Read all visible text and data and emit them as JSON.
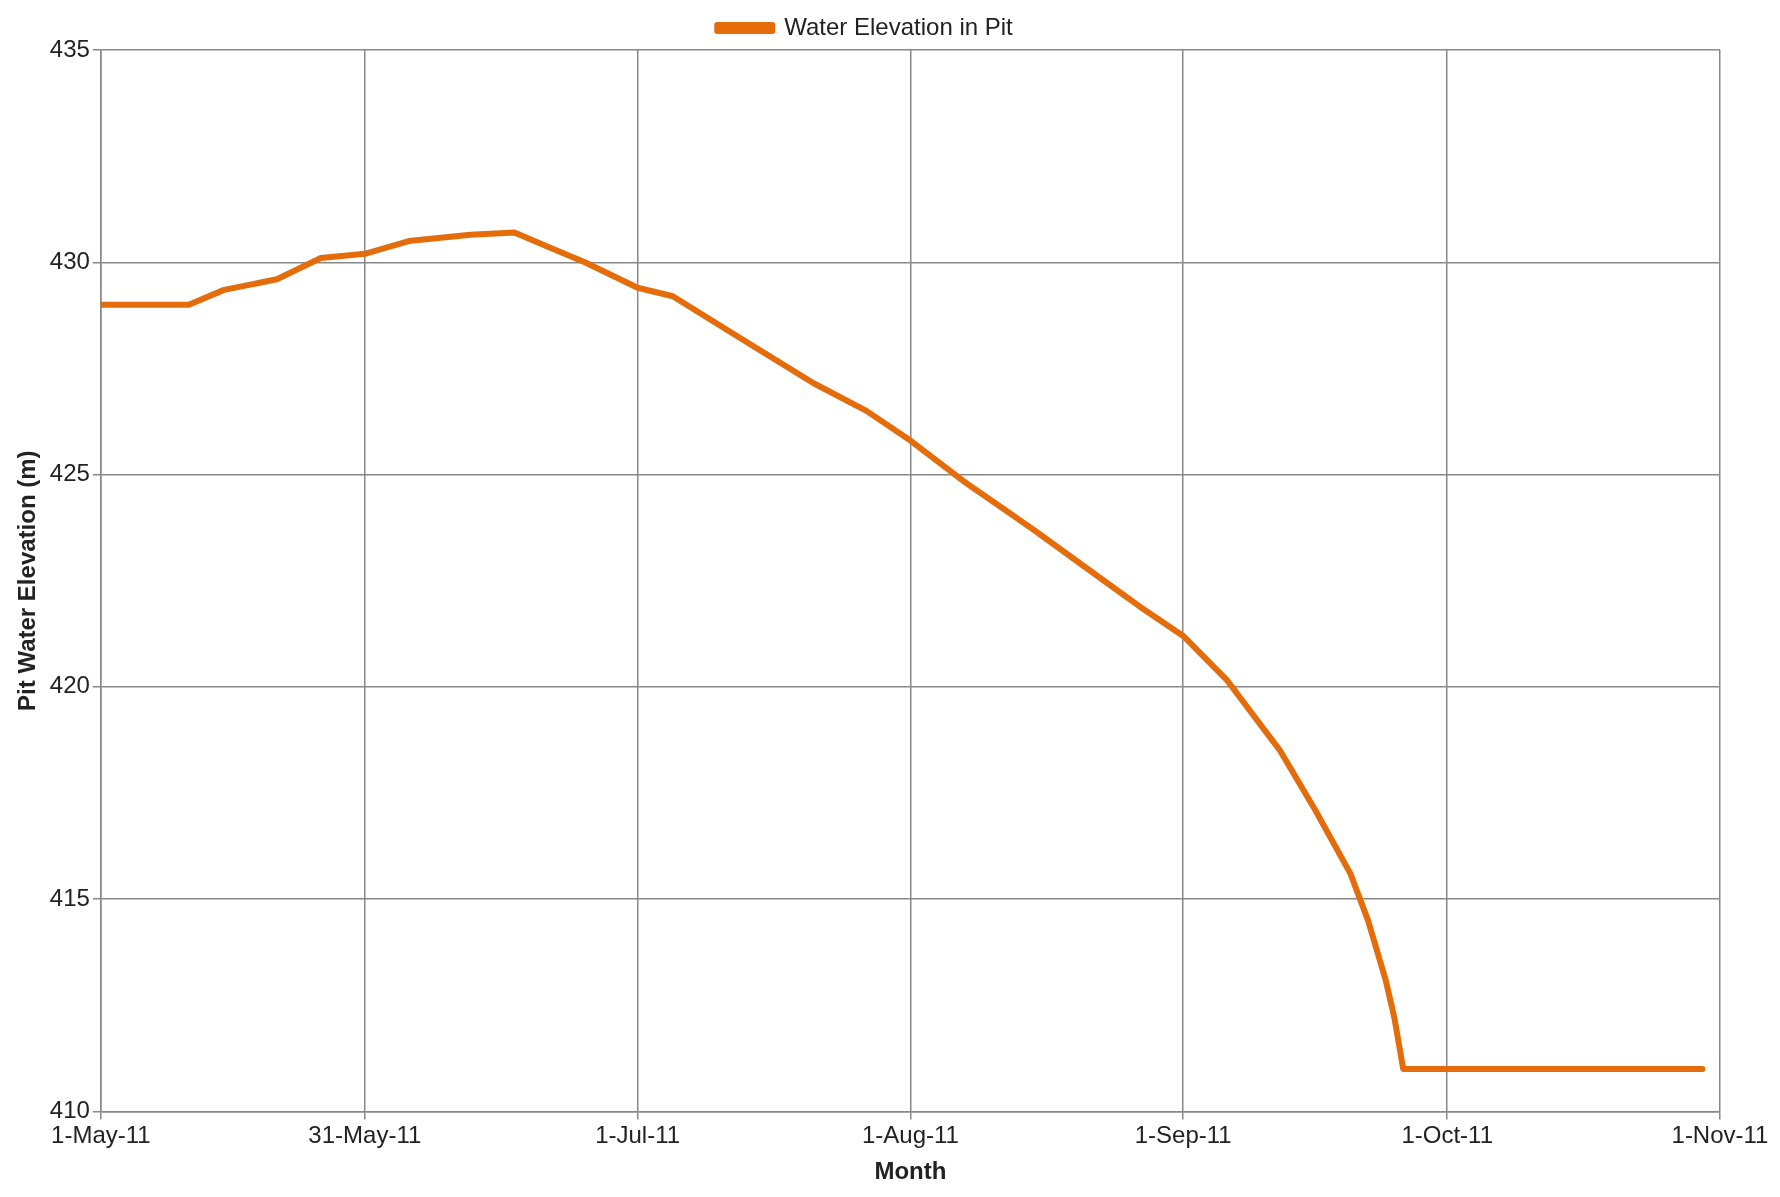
{
  "chart_data": {
    "type": "line",
    "xlabel": "Month",
    "ylabel": "Pit Water Elevation (m)",
    "x": [
      "2011-05-01",
      "2011-05-11",
      "2011-05-15",
      "2011-05-21",
      "2011-05-26",
      "2011-05-31",
      "2011-06-05",
      "2011-06-12",
      "2011-06-17",
      "2011-06-21",
      "2011-06-25",
      "2011-07-01",
      "2011-07-05",
      "2011-07-12",
      "2011-07-21",
      "2011-07-27",
      "2011-08-01",
      "2011-08-07",
      "2011-08-15",
      "2011-08-19",
      "2011-08-23",
      "2011-08-27",
      "2011-09-01",
      "2011-09-06",
      "2011-09-12",
      "2011-09-16",
      "2011-09-20",
      "2011-09-22",
      "2011-09-24",
      "2011-09-25",
      "2011-09-26",
      "2011-10-30"
    ],
    "series": [
      {
        "name": "Water Elevation in Pit",
        "color": "#e46c0a",
        "values": [
          429.0,
          429.0,
          429.35,
          429.6,
          430.1,
          430.2,
          430.5,
          430.65,
          430.7,
          430.35,
          430.0,
          429.4,
          429.2,
          428.3,
          427.15,
          426.5,
          425.8,
          424.85,
          423.7,
          423.1,
          422.5,
          421.9,
          421.2,
          420.15,
          418.5,
          417.1,
          415.6,
          414.5,
          413.1,
          412.2,
          411.0,
          411.0
        ]
      }
    ],
    "xlim": [
      "2011-05-01",
      "2011-11-01"
    ],
    "xticks": [
      {
        "value": "2011-05-01",
        "label": "1-May-11"
      },
      {
        "value": "2011-05-31",
        "label": "31-May-11"
      },
      {
        "value": "2011-07-01",
        "label": "1-Jul-11"
      },
      {
        "value": "2011-08-01",
        "label": "1-Aug-11"
      },
      {
        "value": "2011-09-01",
        "label": "1-Sep-11"
      },
      {
        "value": "2011-10-01",
        "label": "1-Oct-11"
      },
      {
        "value": "2011-11-01",
        "label": "1-Nov-11"
      }
    ],
    "ylim": [
      410,
      435
    ],
    "yticks": [
      410,
      415,
      420,
      425,
      430,
      435
    ],
    "grid": true,
    "legend": "top",
    "marker": "none",
    "line_style": "solid"
  }
}
